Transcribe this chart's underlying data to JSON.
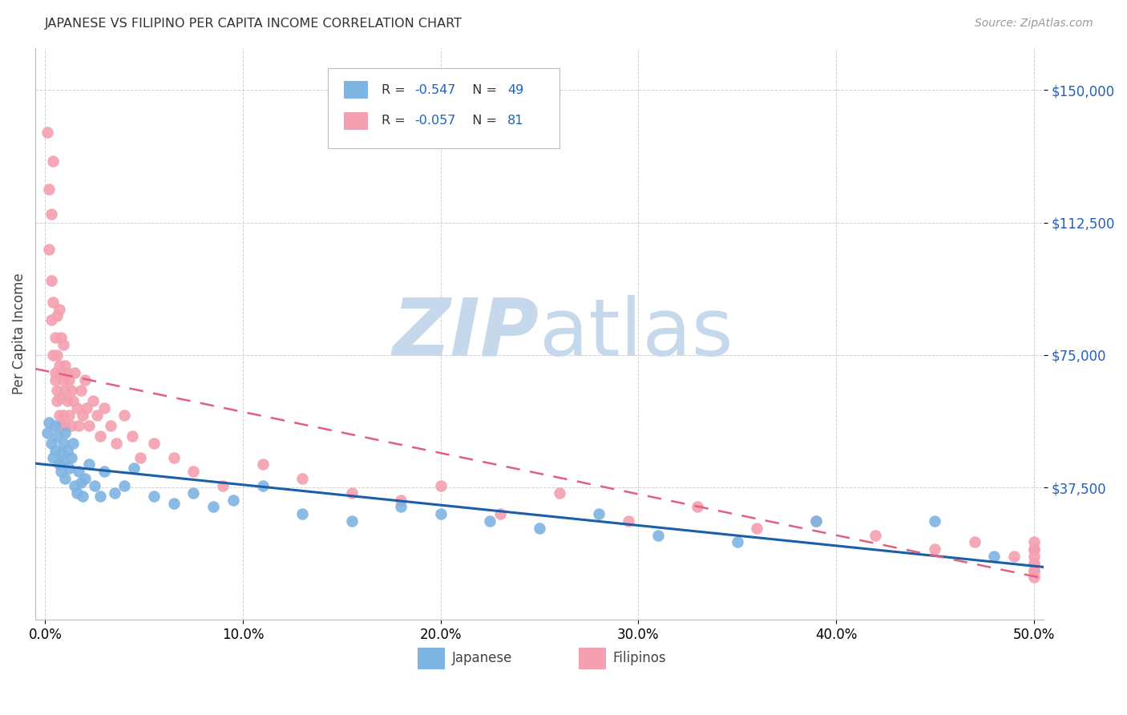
{
  "title": "JAPANESE VS FILIPINO PER CAPITA INCOME CORRELATION CHART",
  "source": "Source: ZipAtlas.com",
  "ylabel": "Per Capita Income",
  "xlabel_ticks": [
    "0.0%",
    "10.0%",
    "20.0%",
    "30.0%",
    "40.0%",
    "50.0%"
  ],
  "xlabel_vals": [
    0.0,
    0.1,
    0.2,
    0.3,
    0.4,
    0.5
  ],
  "ytick_labels": [
    "$37,500",
    "$75,000",
    "$112,500",
    "$150,000"
  ],
  "ytick_vals": [
    37500,
    75000,
    112500,
    150000
  ],
  "ylim": [
    0,
    162000
  ],
  "xlim": [
    -0.005,
    0.505
  ],
  "japanese_color": "#7EB4E2",
  "filipino_color": "#F4A0B0",
  "japanese_line_color": "#1A5FA8",
  "filipino_line_color": "#E06080",
  "R_japanese": -0.547,
  "N_japanese": 49,
  "R_filipino": -0.057,
  "N_filipino": 81,
  "watermark_zip": "ZIP",
  "watermark_atlas": "atlas",
  "watermark_color_zip": "#C5D8EC",
  "watermark_color_atlas": "#C5D8EC",
  "legend_japanese": "Japanese",
  "legend_filipino": "Filipinos",
  "label_color": "#333333",
  "value_color": "#2060C0",
  "japanese_x": [
    0.001,
    0.002,
    0.003,
    0.004,
    0.005,
    0.005,
    0.006,
    0.007,
    0.008,
    0.008,
    0.009,
    0.009,
    0.01,
    0.01,
    0.011,
    0.012,
    0.013,
    0.014,
    0.015,
    0.016,
    0.017,
    0.018,
    0.019,
    0.02,
    0.022,
    0.025,
    0.028,
    0.03,
    0.035,
    0.04,
    0.045,
    0.055,
    0.065,
    0.075,
    0.085,
    0.095,
    0.11,
    0.13,
    0.155,
    0.18,
    0.2,
    0.225,
    0.25,
    0.28,
    0.31,
    0.35,
    0.39,
    0.45,
    0.48
  ],
  "japanese_y": [
    53000,
    56000,
    50000,
    46000,
    55000,
    48000,
    52000,
    44000,
    47000,
    42000,
    45000,
    50000,
    40000,
    53000,
    48000,
    43000,
    46000,
    50000,
    38000,
    36000,
    42000,
    39000,
    35000,
    40000,
    44000,
    38000,
    35000,
    42000,
    36000,
    38000,
    43000,
    35000,
    33000,
    36000,
    32000,
    34000,
    38000,
    30000,
    28000,
    32000,
    30000,
    28000,
    26000,
    30000,
    24000,
    22000,
    28000,
    28000,
    18000
  ],
  "filipino_x": [
    0.001,
    0.002,
    0.002,
    0.003,
    0.003,
    0.003,
    0.004,
    0.004,
    0.004,
    0.005,
    0.005,
    0.005,
    0.006,
    0.006,
    0.006,
    0.006,
    0.007,
    0.007,
    0.007,
    0.008,
    0.008,
    0.008,
    0.008,
    0.009,
    0.009,
    0.009,
    0.01,
    0.01,
    0.01,
    0.011,
    0.011,
    0.012,
    0.012,
    0.013,
    0.013,
    0.014,
    0.015,
    0.016,
    0.017,
    0.018,
    0.019,
    0.02,
    0.021,
    0.022,
    0.024,
    0.026,
    0.028,
    0.03,
    0.033,
    0.036,
    0.04,
    0.044,
    0.048,
    0.055,
    0.065,
    0.075,
    0.09,
    0.11,
    0.13,
    0.155,
    0.18,
    0.2,
    0.23,
    0.26,
    0.295,
    0.33,
    0.36,
    0.39,
    0.42,
    0.45,
    0.47,
    0.49,
    0.5,
    0.5,
    0.5,
    0.5,
    0.5,
    0.5,
    0.5,
    0.5,
    0.5
  ],
  "filipino_y": [
    138000,
    122000,
    105000,
    115000,
    96000,
    85000,
    90000,
    75000,
    130000,
    80000,
    70000,
    68000,
    86000,
    75000,
    65000,
    62000,
    88000,
    72000,
    58000,
    80000,
    70000,
    63000,
    55000,
    78000,
    68000,
    58000,
    72000,
    65000,
    55000,
    70000,
    62000,
    68000,
    58000,
    65000,
    55000,
    62000,
    70000,
    60000,
    55000,
    65000,
    58000,
    68000,
    60000,
    55000,
    62000,
    58000,
    52000,
    60000,
    55000,
    50000,
    58000,
    52000,
    46000,
    50000,
    46000,
    42000,
    38000,
    44000,
    40000,
    36000,
    34000,
    38000,
    30000,
    36000,
    28000,
    32000,
    26000,
    28000,
    24000,
    20000,
    22000,
    18000,
    20000,
    14000,
    16000,
    12000,
    20000,
    22000,
    18000,
    14000,
    16000
  ]
}
